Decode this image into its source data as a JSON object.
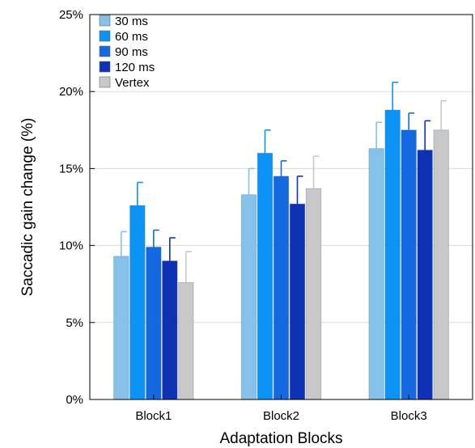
{
  "chart_data": {
    "type": "bar",
    "title": "",
    "xlabel": "Adaptation Blocks",
    "ylabel": "Saccadic gain change (%)",
    "ylim": [
      0,
      25
    ],
    "yticks": [
      "0%",
      "5%",
      "10%",
      "15%",
      "20%",
      "25%"
    ],
    "grid": "horizontal",
    "legend_position": "top-left",
    "categories": [
      "Block1",
      "Block2",
      "Block3"
    ],
    "series": [
      {
        "name": "30 ms",
        "color": "#85C1E9",
        "values": [
          9.3,
          13.3,
          16.3
        ],
        "errors": [
          1.6,
          1.7,
          1.7
        ]
      },
      {
        "name": "60 ms",
        "color": "#0B93F5",
        "values": [
          12.6,
          16.0,
          18.8
        ],
        "errors": [
          1.5,
          1.5,
          1.8
        ]
      },
      {
        "name": "90 ms",
        "color": "#1569E0",
        "values": [
          9.9,
          14.5,
          17.5
        ],
        "errors": [
          1.1,
          1.0,
          1.1
        ]
      },
      {
        "name": "120 ms",
        "color": "#0F32B4",
        "values": [
          9.0,
          12.7,
          16.2
        ],
        "errors": [
          1.5,
          1.8,
          1.9
        ]
      },
      {
        "name": "Vertex",
        "color": "#C8C8C8",
        "values": [
          7.6,
          13.7,
          17.5
        ],
        "errors": [
          2.0,
          2.1,
          1.9
        ]
      }
    ]
  }
}
